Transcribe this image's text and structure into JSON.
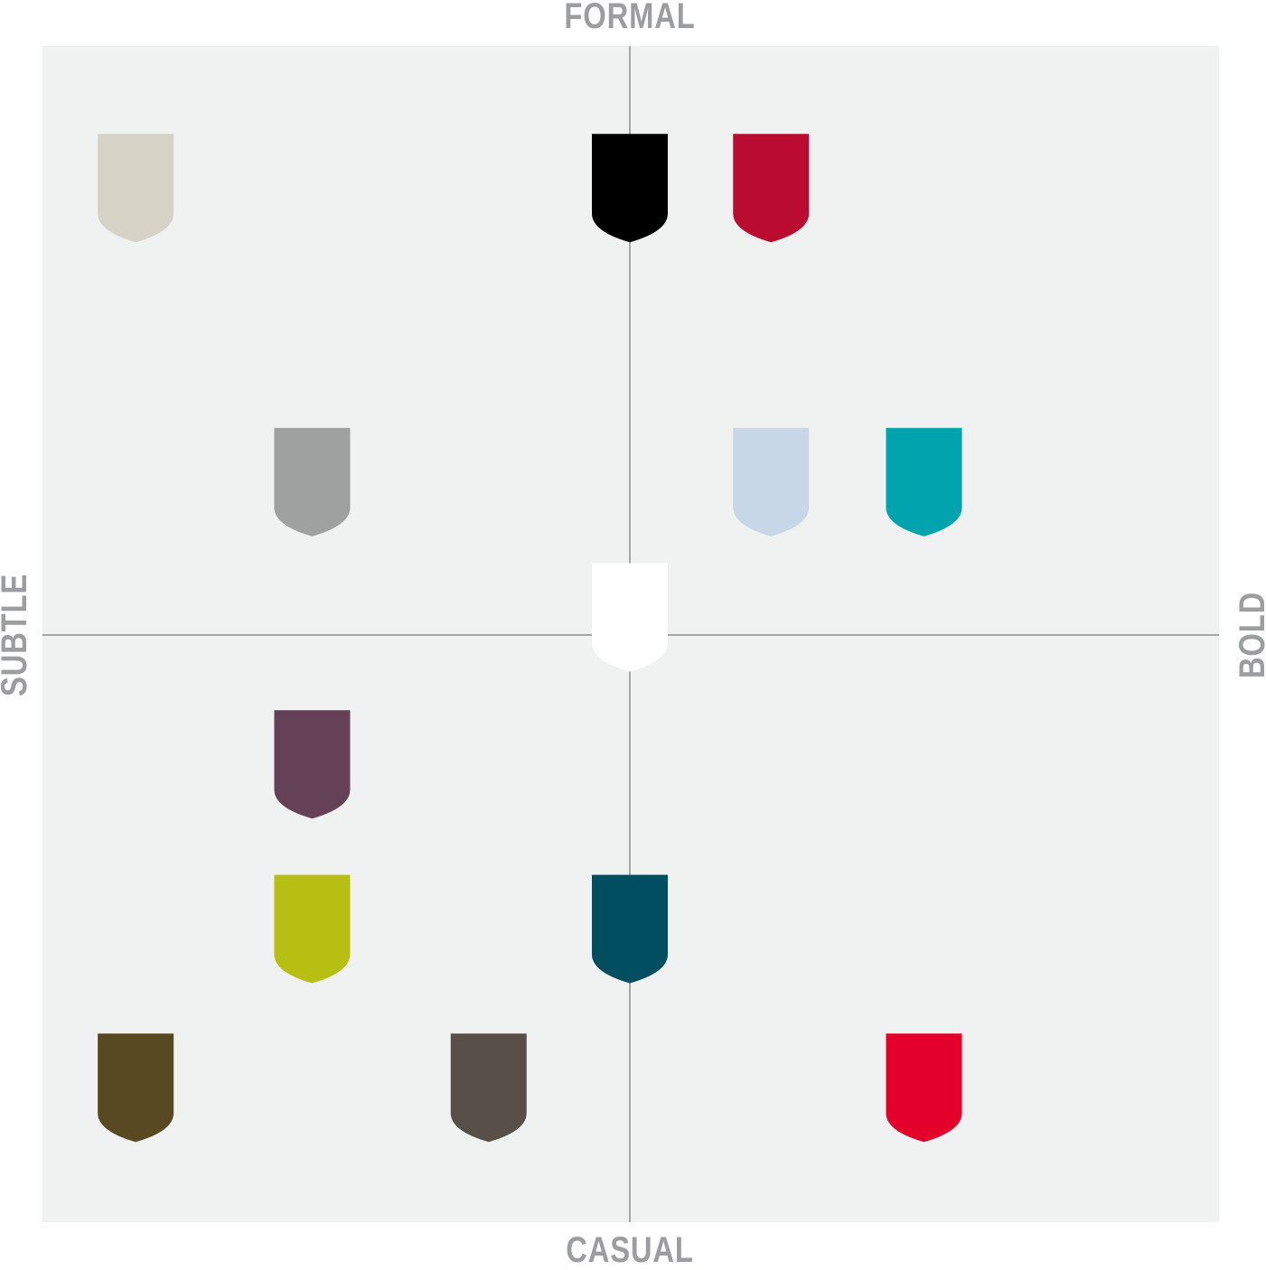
{
  "axes": {
    "top": "FORMAL",
    "bottom": "CASUAL",
    "left": "SUBTLE",
    "right": "BOLD"
  },
  "colors": {
    "panel_background": "#f0f1f1",
    "axis_line": "#8c8e8f",
    "label": "#9b9d9e"
  },
  "swatches": [
    {
      "name": "swatch-beige",
      "color": "#d6d3c6",
      "subtle_bold": -0.84,
      "formal_casual": 0.76
    },
    {
      "name": "swatch-black",
      "color": "#000000",
      "subtle_bold": 0.0,
      "formal_casual": 0.76
    },
    {
      "name": "swatch-crimson",
      "color": "#b90c30",
      "subtle_bold": 0.24,
      "formal_casual": 0.76
    },
    {
      "name": "swatch-gray",
      "color": "#9fa1a1",
      "subtle_bold": -0.54,
      "formal_casual": 0.26
    },
    {
      "name": "swatch-light-blue",
      "color": "#c7d7e8",
      "subtle_bold": 0.24,
      "formal_casual": 0.26
    },
    {
      "name": "swatch-teal",
      "color": "#00a3ae",
      "subtle_bold": 0.5,
      "formal_casual": 0.26
    },
    {
      "name": "swatch-white",
      "color": "#ffffff",
      "subtle_bold": 0.0,
      "formal_casual": 0.03
    },
    {
      "name": "swatch-plum",
      "color": "#644157",
      "subtle_bold": -0.54,
      "formal_casual": -0.22
    },
    {
      "name": "swatch-lime",
      "color": "#b7bf13",
      "subtle_bold": -0.54,
      "formal_casual": -0.5
    },
    {
      "name": "swatch-petrol",
      "color": "#004e60",
      "subtle_bold": 0.0,
      "formal_casual": -0.5
    },
    {
      "name": "swatch-olive-brown",
      "color": "#594923",
      "subtle_bold": -0.84,
      "formal_casual": -0.77
    },
    {
      "name": "swatch-taupe",
      "color": "#574f48",
      "subtle_bold": -0.24,
      "formal_casual": -0.77
    },
    {
      "name": "swatch-red",
      "color": "#e3002b",
      "subtle_bold": 0.5,
      "formal_casual": -0.77
    }
  ]
}
